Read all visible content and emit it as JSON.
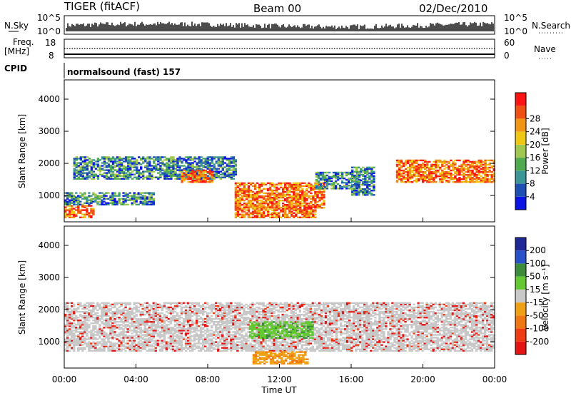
{
  "header": {
    "radar": "TIGER (fitACF)",
    "beam": "Beam 00",
    "date": "02/Dec/2010"
  },
  "top_panels": {
    "nsky_label": "N.Sky",
    "nsearch_label": "N.Search",
    "nsky_ticks": [
      "10^5",
      "10^0"
    ],
    "nsearch_ticks": [
      "10^5",
      "10^0"
    ],
    "freq_label_1": "Freq.",
    "freq_label_2": "[MHz]",
    "freq_ticks": [
      "18",
      "8"
    ],
    "nave_ticks": [
      "60",
      "0"
    ],
    "nave_label": "Nave",
    "cpid_label": "CPID",
    "cpid_text": "normalsound (fast) 157"
  },
  "chart_data": [
    {
      "type": "heatmap",
      "name": "power",
      "ylabel": "Slant Range [km]",
      "xlabel": "Time UT",
      "ylim": [
        180,
        4600
      ],
      "yticks": [
        "1000",
        "2000",
        "3000",
        "4000"
      ],
      "xticks": [
        "00:00",
        "04:00",
        "08:00",
        "12:00",
        "16:00",
        "20:00",
        "00:00"
      ],
      "colorbar": {
        "label": "Power [dB]",
        "ticks": [
          "4",
          "8",
          "12",
          "16",
          "20",
          "24",
          "28"
        ],
        "colors": [
          "#0a14e6",
          "#1e50b4",
          "#3c9696",
          "#50aa50",
          "#a0c850",
          "#f0c814",
          "#f09614",
          "#f05014",
          "#ff1414"
        ]
      },
      "regions": [
        {
          "t0": 0.0,
          "t1": 1.6,
          "r0": 300,
          "r1": 700,
          "level": "high"
        },
        {
          "t0": 0.0,
          "t1": 5.0,
          "r0": 700,
          "r1": 1100,
          "level": "mid"
        },
        {
          "t0": 0.5,
          "t1": 9.5,
          "r0": 1500,
          "r1": 2200,
          "level": "mid"
        },
        {
          "t0": 6.5,
          "t1": 8.2,
          "r0": 1400,
          "r1": 1800,
          "level": "high"
        },
        {
          "t0": 9.5,
          "t1": 14.5,
          "r0": 600,
          "r1": 1400,
          "level": "high"
        },
        {
          "t0": 9.5,
          "t1": 14.0,
          "r0": 300,
          "r1": 700,
          "level": "high"
        },
        {
          "t0": 14.0,
          "t1": 16.5,
          "r0": 1200,
          "r1": 1700,
          "level": "mid"
        },
        {
          "t0": 16.0,
          "t1": 17.3,
          "r0": 1000,
          "r1": 1900,
          "level": "mid"
        },
        {
          "t0": 18.5,
          "t1": 24.0,
          "r0": 1400,
          "r1": 2100,
          "level": "high"
        }
      ]
    },
    {
      "type": "heatmap",
      "name": "velocity",
      "ylabel": "Slant Range [km]",
      "xlabel": "Time UT",
      "ylim": [
        180,
        4600
      ],
      "yticks": [
        "1000",
        "2000",
        "3000",
        "4000"
      ],
      "xticks": [
        "00:00",
        "04:00",
        "08:00",
        "12:00",
        "16:00",
        "20:00",
        "00:00"
      ],
      "colorbar": {
        "label": "Velocity [m s⁻¹]",
        "ticks": [
          "200",
          "100",
          "50",
          "15",
          "-15",
          "-50",
          "-100",
          "-200"
        ],
        "colors": [
          "#1e2896",
          "#2850c8",
          "#3c8c3c",
          "#64c832",
          "#c8c8c8",
          "#f0a014",
          "#f07814",
          "#f03c14",
          "#e61414"
        ]
      },
      "regions": [
        {
          "t0": 0.0,
          "t1": 24.0,
          "r0": 700,
          "r1": 2200,
          "level": "ground"
        },
        {
          "t0": 10.3,
          "t1": 13.8,
          "r0": 1100,
          "r1": 1600,
          "level": "positive"
        },
        {
          "t0": 10.5,
          "t1": 13.5,
          "r0": 300,
          "r1": 700,
          "level": "negative"
        }
      ]
    }
  ]
}
